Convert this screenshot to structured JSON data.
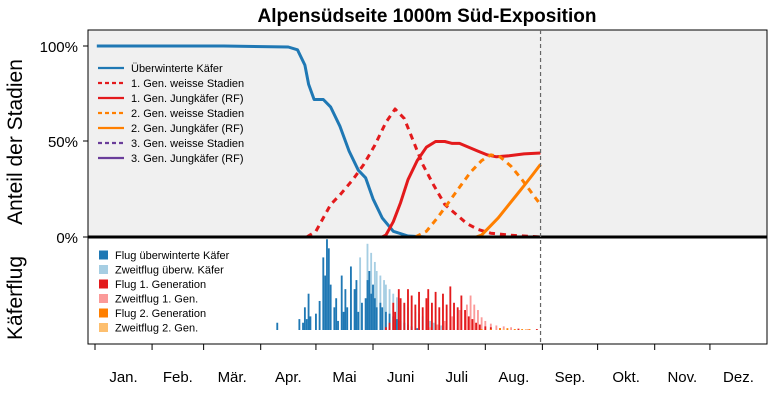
{
  "chart_data": {
    "type": "line",
    "title": "Alpensüdseite 1000m Süd-Exposition",
    "ylabel_top": "Anteil der Stadien",
    "ylabel_bottom": "Käferflug",
    "yticks": [
      "100%",
      "50%",
      "0%"
    ],
    "months": [
      "Jan.",
      "Feb.",
      "Mär.",
      "Apr.",
      "Mai",
      "Juni",
      "Juli",
      "Aug.",
      "Sep.",
      "Okt.",
      "Nov.",
      "Dez."
    ],
    "grid": false,
    "colors": {
      "blue": "#1f78b4",
      "light_blue": "#a6cee3",
      "red": "#e31a1c",
      "light_red": "#fb9a99",
      "orange": "#ff7f00",
      "light_orange": "#fdbf6f",
      "purple": "#6a3d9a",
      "panel_bg": "#f0f0f0"
    },
    "today_marker_day": 242,
    "series": [
      {
        "name": "Überwinterte Käfer",
        "style": "solid",
        "color": "#1f78b4",
        "points": [
          [
            1,
            100
          ],
          [
            70,
            100
          ],
          [
            105,
            99.5
          ],
          [
            110,
            98
          ],
          [
            114,
            90
          ],
          [
            116,
            80
          ],
          [
            119,
            72
          ],
          [
            124,
            72
          ],
          [
            128,
            68
          ],
          [
            133,
            58
          ],
          [
            138,
            45
          ],
          [
            143,
            35
          ],
          [
            147,
            31
          ],
          [
            151,
            20
          ],
          [
            156,
            10
          ],
          [
            162,
            3
          ],
          [
            170,
            0.5
          ],
          [
            180,
            0
          ]
        ]
      },
      {
        "name": "1. Gen. weisse Stadien",
        "style": "dashed",
        "color": "#e31a1c",
        "points": [
          [
            115,
            0
          ],
          [
            120,
            3
          ],
          [
            124,
            10
          ],
          [
            128,
            17
          ],
          [
            133,
            22
          ],
          [
            140,
            30
          ],
          [
            146,
            38
          ],
          [
            152,
            48
          ],
          [
            158,
            60
          ],
          [
            163,
            67
          ],
          [
            168,
            62
          ],
          [
            173,
            50
          ],
          [
            178,
            38
          ],
          [
            184,
            27
          ],
          [
            190,
            17
          ],
          [
            196,
            12
          ],
          [
            202,
            7
          ],
          [
            208,
            4
          ],
          [
            215,
            2
          ],
          [
            225,
            1
          ],
          [
            242,
            0
          ]
        ]
      },
      {
        "name": "1. Gen. Jungkäfer (RF)",
        "style": "solid",
        "color": "#e31a1c",
        "points": [
          [
            156,
            0
          ],
          [
            158,
            1
          ],
          [
            162,
            8
          ],
          [
            166,
            18
          ],
          [
            170,
            30
          ],
          [
            175,
            40
          ],
          [
            180,
            47
          ],
          [
            185,
            50
          ],
          [
            190,
            50
          ],
          [
            194,
            49
          ],
          [
            198,
            49
          ],
          [
            203,
            47
          ],
          [
            208,
            45
          ],
          [
            213,
            43
          ],
          [
            218,
            42
          ],
          [
            225,
            42.5
          ],
          [
            233,
            43.5
          ],
          [
            242,
            44
          ]
        ]
      },
      {
        "name": "2. Gen. weisse Stadien",
        "style": "dashed",
        "color": "#ff7f00",
        "points": [
          [
            174,
            0
          ],
          [
            180,
            3
          ],
          [
            186,
            10
          ],
          [
            192,
            18
          ],
          [
            198,
            26
          ],
          [
            204,
            34
          ],
          [
            210,
            40
          ],
          [
            215,
            43
          ],
          [
            220,
            42
          ],
          [
            226,
            37
          ],
          [
            232,
            30
          ],
          [
            238,
            22
          ],
          [
            242,
            17
          ]
        ]
      },
      {
        "name": "2. Gen. Jungkäfer (RF)",
        "style": "solid",
        "color": "#ff7f00",
        "points": [
          [
            207,
            0
          ],
          [
            210,
            1
          ],
          [
            214,
            5
          ],
          [
            219,
            10
          ],
          [
            224,
            16
          ],
          [
            229,
            22
          ],
          [
            234,
            28
          ],
          [
            238,
            33
          ],
          [
            242,
            38
          ]
        ]
      },
      {
        "name": "3. Gen. weisse Stadien",
        "style": "dashed",
        "color": "#6a3d9a",
        "points": []
      },
      {
        "name": "3. Gen. Jungkäfer (RF)",
        "style": "solid",
        "color": "#6a3d9a",
        "points": []
      }
    ],
    "flight_legend": [
      {
        "name": "Flug überwinterte Käfer",
        "color": "#1f78b4"
      },
      {
        "name": "Zweitflug überw. Käfer",
        "color": "#a6cee3"
      },
      {
        "name": "Flug 1. Generation",
        "color": "#e31a1c"
      },
      {
        "name": "Zweitflug 1. Gen.",
        "color": "#fb9a99"
      },
      {
        "name": "Flug 2. Generation",
        "color": "#ff7f00"
      },
      {
        "name": "Zweitflug 2. Gen.",
        "color": "#fdbf6f"
      }
    ],
    "flight_bars": {
      "flug_ueberwinterte": [
        [
          99,
          8
        ],
        [
          111,
          12
        ],
        [
          113,
          8
        ],
        [
          114,
          25
        ],
        [
          115,
          12
        ],
        [
          116,
          40
        ],
        [
          117,
          15
        ],
        [
          120,
          18
        ],
        [
          122,
          32
        ],
        [
          124,
          80
        ],
        [
          125,
          60
        ],
        [
          126,
          100
        ],
        [
          127,
          90
        ],
        [
          128,
          50
        ],
        [
          130,
          25
        ],
        [
          131,
          35
        ],
        [
          132,
          10
        ],
        [
          134,
          60
        ],
        [
          135,
          20
        ],
        [
          136,
          45
        ],
        [
          137,
          25
        ],
        [
          139,
          70
        ],
        [
          141,
          45
        ],
        [
          142,
          55
        ],
        [
          143,
          20
        ],
        [
          145,
          30
        ],
        [
          147,
          35
        ],
        [
          148,
          55
        ],
        [
          149,
          65
        ],
        [
          150,
          40
        ],
        [
          151,
          50
        ],
        [
          152,
          35
        ],
        [
          153,
          25
        ],
        [
          155,
          30
        ],
        [
          156,
          25
        ],
        [
          158,
          20
        ],
        [
          160,
          18
        ],
        [
          162,
          15
        ],
        [
          164,
          12
        ],
        [
          166,
          10
        ],
        [
          168,
          8
        ],
        [
          170,
          6
        ],
        [
          172,
          4
        ],
        [
          175,
          2
        ]
      ],
      "zweitflug_ueberw": [
        [
          139,
          55
        ],
        [
          144,
          80
        ],
        [
          148,
          95
        ],
        [
          150,
          85
        ],
        [
          152,
          75
        ],
        [
          153,
          65
        ],
        [
          155,
          60
        ],
        [
          157,
          55
        ],
        [
          158,
          50
        ],
        [
          160,
          45
        ],
        [
          162,
          40
        ],
        [
          164,
          36
        ],
        [
          166,
          32
        ],
        [
          168,
          28
        ],
        [
          170,
          25
        ],
        [
          172,
          22
        ],
        [
          174,
          20
        ],
        [
          176,
          18
        ],
        [
          178,
          15
        ],
        [
          180,
          12
        ],
        [
          182,
          10
        ],
        [
          184,
          8
        ],
        [
          186,
          6
        ],
        [
          188,
          5
        ],
        [
          190,
          4
        ],
        [
          193,
          3
        ],
        [
          197,
          2
        ]
      ],
      "flug_1_gen": [
        [
          158,
          3
        ],
        [
          160,
          8
        ],
        [
          162,
          30
        ],
        [
          163,
          20
        ],
        [
          165,
          45
        ],
        [
          166,
          35
        ],
        [
          168,
          30
        ],
        [
          170,
          45
        ],
        [
          172,
          38
        ],
        [
          174,
          28
        ],
        [
          176,
          42
        ],
        [
          178,
          25
        ],
        [
          180,
          35
        ],
        [
          181,
          45
        ],
        [
          183,
          30
        ],
        [
          185,
          42
        ],
        [
          187,
          25
        ],
        [
          189,
          40
        ],
        [
          191,
          28
        ],
        [
          193,
          48
        ],
        [
          195,
          30
        ],
        [
          197,
          25
        ],
        [
          199,
          38
        ],
        [
          201,
          22
        ],
        [
          203,
          15
        ],
        [
          205,
          12
        ],
        [
          207,
          8
        ],
        [
          209,
          6
        ],
        [
          212,
          4
        ],
        [
          215,
          3
        ],
        [
          220,
          2
        ],
        [
          230,
          1
        ],
        [
          240,
          1
        ]
      ],
      "zweitflug_1_gen": [
        [
          182,
          3
        ],
        [
          186,
          6
        ],
        [
          190,
          10
        ],
        [
          194,
          15
        ],
        [
          198,
          22
        ],
        [
          202,
          28
        ],
        [
          204,
          38
        ],
        [
          206,
          28
        ],
        [
          208,
          22
        ],
        [
          210,
          14
        ],
        [
          212,
          10
        ],
        [
          215,
          7
        ],
        [
          218,
          5
        ],
        [
          222,
          4
        ],
        [
          226,
          3
        ],
        [
          230,
          2
        ],
        [
          235,
          1
        ]
      ],
      "flug_2_gen": [
        [
          210,
          1
        ],
        [
          215,
          1
        ],
        [
          220,
          2
        ],
        [
          224,
          2
        ],
        [
          228,
          1
        ],
        [
          232,
          1
        ],
        [
          236,
          1
        ]
      ],
      "zweitflug_2_gen": [
        [
          222,
          1
        ],
        [
          228,
          1
        ],
        [
          234,
          1
        ]
      ]
    }
  }
}
